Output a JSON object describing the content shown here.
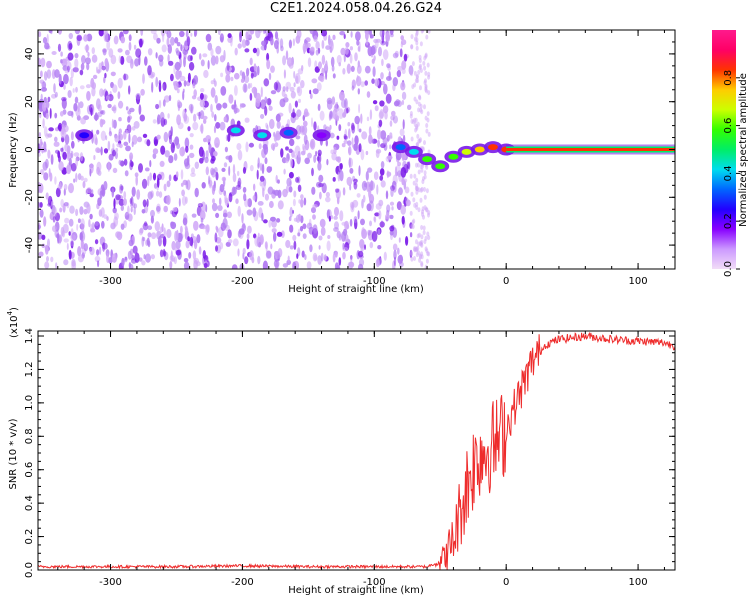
{
  "title": "C2E1.2024.058.04.26.G24",
  "colors": {
    "spectrum": "#7a1ae8",
    "spectrum_light": "#cfa6f7",
    "snr_line": "#ee2c2c",
    "colorbar_stops": [
      "#f2ddf7",
      "#cc99ff",
      "#8800ff",
      "#2200ff",
      "#0066ff",
      "#00ddee",
      "#00ee66",
      "#33ff00",
      "#ccff00",
      "#ffcc00",
      "#ff3300",
      "#ff0066",
      "#ff1a8c"
    ]
  },
  "chart_data": [
    {
      "type": "heatmap",
      "xlabel": "Height of straight line (km)",
      "ylabel": "Frequency (Hz)",
      "xlim": [
        -355,
        128
      ],
      "ylim": [
        -50,
        50
      ],
      "xticks": [
        -300,
        -200,
        -100,
        0,
        100
      ],
      "xtick_labels": [
        "-300",
        "-200",
        "-100",
        "0",
        "100"
      ],
      "yticks": [
        -40,
        -20,
        0,
        20,
        40
      ],
      "ytick_labels": [
        "-40",
        "-20",
        "0",
        "20",
        "40"
      ],
      "noise_region_x": [
        -355,
        -72
      ],
      "noise_region_y": [
        -50,
        50
      ],
      "signal_line_freq": 0,
      "signal_line_x": [
        0,
        128
      ],
      "signal_features": [
        {
          "x": -320,
          "y": 6,
          "amp": 0.25
        },
        {
          "x": -205,
          "y": 8,
          "amp": 0.45
        },
        {
          "x": -185,
          "y": 6,
          "amp": 0.4
        },
        {
          "x": -165,
          "y": 7,
          "amp": 0.35
        },
        {
          "x": -140,
          "y": 6,
          "amp": 0.2
        },
        {
          "x": -80,
          "y": 1,
          "amp": 0.3
        },
        {
          "x": -70,
          "y": -1,
          "amp": 0.45
        },
        {
          "x": -60,
          "y": -4,
          "amp": 0.55
        },
        {
          "x": -50,
          "y": -7,
          "amp": 0.6
        },
        {
          "x": -40,
          "y": -3,
          "amp": 0.55
        },
        {
          "x": -30,
          "y": -1,
          "amp": 0.65
        },
        {
          "x": -20,
          "y": 0,
          "amp": 0.75
        },
        {
          "x": -10,
          "y": 1,
          "amp": 0.8
        },
        {
          "x": 0,
          "y": 0,
          "amp": 0.85
        }
      ],
      "colorbar": {
        "label": "Normalized spectral amplitude",
        "range": [
          0,
          1
        ],
        "ticks": [
          0.0,
          0.2,
          0.4,
          0.6,
          0.8
        ],
        "tick_labels": [
          "0.0",
          "0.2",
          "0.4",
          "0.6",
          "0.8"
        ]
      }
    },
    {
      "type": "line",
      "xlabel": "Height of straight line (km)",
      "ylabel": "SNR (10 * v/v)",
      "y_multiplier": "(x10",
      "y_multiplier_exp": "4",
      "y_multiplier_close": ")",
      "xlim": [
        -355,
        128
      ],
      "ylim": [
        0,
        1.43
      ],
      "xticks": [
        -300,
        -200,
        -100,
        0,
        100
      ],
      "xtick_labels": [
        "-300",
        "-200",
        "-100",
        "0",
        "100"
      ],
      "yticks": [
        0,
        0.2,
        0.4,
        0.6,
        0.8,
        1.0,
        1.2,
        1.4
      ],
      "ytick_labels": [
        "0.0",
        "0.2",
        "0.4",
        "0.6",
        "0.8",
        "1.0",
        "1.2",
        "1.4"
      ],
      "series": [
        {
          "x": [
            -355,
            -300,
            -250,
            -200,
            -150,
            -100,
            -60,
            -50,
            -45,
            -40,
            -35,
            -30,
            -25,
            -20,
            -15,
            -10,
            -5,
            0,
            10,
            20,
            30,
            40,
            60,
            80,
            100,
            120,
            128
          ],
          "y": [
            0.02,
            0.02,
            0.02,
            0.025,
            0.02,
            0.02,
            0.02,
            0.05,
            0.1,
            0.18,
            0.35,
            0.5,
            0.62,
            0.7,
            0.72,
            0.75,
            0.78,
            0.85,
            1.05,
            1.25,
            1.35,
            1.38,
            1.4,
            1.38,
            1.37,
            1.36,
            1.34
          ]
        }
      ]
    }
  ]
}
